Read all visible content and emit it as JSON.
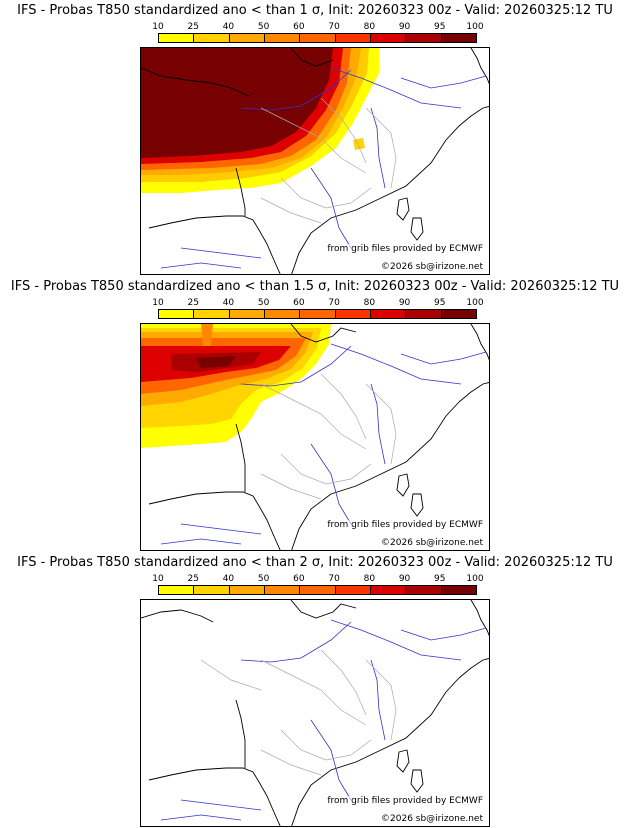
{
  "colorbar": {
    "ticks": [
      "10",
      "25",
      "40",
      "50",
      "60",
      "70",
      "80",
      "90",
      "95",
      "100"
    ],
    "colors": [
      "#ffff00",
      "#ffd400",
      "#ffaa00",
      "#ff8800",
      "#ff6600",
      "#ff3300",
      "#dd0000",
      "#aa0000",
      "#770000"
    ]
  },
  "panels": [
    {
      "title": "IFS - Probas T850  standardized ano < than 1 σ, Init: 20260323 00z - Valid: 20260325:12 TU",
      "credit_source": "from grib files provided by ECMWF",
      "credit_copyright": "©2026 sb@irizone.net"
    },
    {
      "title": "IFS - Probas T850  standardized ano < than 1.5 σ, Init: 20260323 00z - Valid: 20260325:12 TU",
      "credit_source": "from grib files provided by ECMWF",
      "credit_copyright": "©2026 sb@irizone.net"
    },
    {
      "title": "IFS - Probas T850  standardized ano < than 2 σ, Init: 20260323 00z - Valid: 20260325:12 TU",
      "credit_source": "from grib files provided by ECMWF",
      "credit_copyright": "©2026 sb@irizone.net"
    }
  ]
}
